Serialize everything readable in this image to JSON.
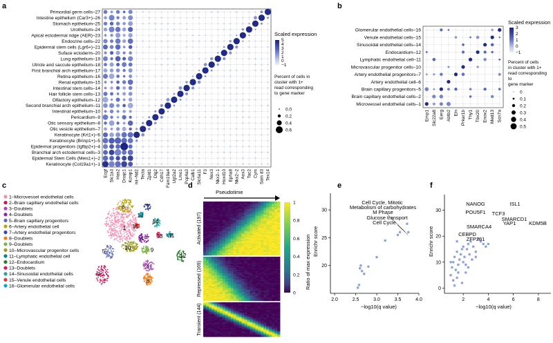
{
  "panels": {
    "a": {
      "label": "a",
      "rows": [
        "Primordial germ cells–27",
        "Intestine epithelium (Car3+)–26",
        "Stomach epithelium–25",
        "Urothelium–24",
        "Apical ectodermal ridge (AER)–23",
        "Endocrine cells–22",
        "Epidermal stem cells (Lgr6+)–21",
        "Suface ectoderm–20",
        "Lung epithelium–19",
        "Utricle and saccule epithelium–18",
        "First branchial arch epithelium–17",
        "Retina epithelium–16",
        "Renal epithelium–15",
        "Intestinal stem cells–14",
        "Hair follicle stem cells–13",
        "Olfactory epithelium–12",
        "Second branchial arch epithelium–11",
        "Intestinal epithelium–10",
        "Pericardium–9",
        "Otic sensory epithelium–8",
        "Otic vesicle epithelium–7",
        "Keratinocyte (Krt1+)–6",
        "Keratinocyte (Brinp1+)–5",
        "Epidermal progenitors (Igfbp2+)–4",
        "Branchial arch ectodermal cells–3",
        "Epidermal Stem Cells (Meis1+)–2",
        "Keratinocyte (Col19a1+)–1"
      ],
      "genes": [
        "Ecgf",
        "Slc1a3",
        "Has2",
        "Dnajc1",
        "Kcnip1",
        "mt–Nd2",
        "Tecta",
        "Zpld1",
        "Dlg2",
        "Cdh17",
        "Fam19a4",
        "Ugt2a2",
        "Lmo1",
        "Pcp4a3",
        "Calb1",
        "Slc6a11",
        "F3",
        "Nox3",
        "Nkx2–1",
        "Hoxd10",
        "Epha8",
        "Nkx2–2",
        "Aox3",
        "Tac2",
        "Cym",
        "Sam d3",
        "Tex14"
      ],
      "legend_title": "Scaled expression",
      "legend_ticks": [
        "5",
        "4",
        "3",
        "2",
        "1",
        "0",
        "−1"
      ],
      "size_title": "Percent of cells in cluster with 1+ read corresponding to gene marker",
      "size_labels": [
        "0.0",
        "0.2",
        "0.4",
        "0.6"
      ]
    },
    "b": {
      "label": "b",
      "rows": [
        "Glomerular endothelial cells–16",
        "Venule endothelial cells–15",
        "Sinusoidal endothelial cells–14",
        "Endocardium–12",
        "Lymphatic endothelial cell–11",
        "Microvascular progenitor cells–10",
        "Artery endothelial progenitors–7",
        "Artery endothelial cell–6",
        "Brain capillary progenitors–5",
        "Brain capillary endothelial cells–2",
        "Microvessel endothelial cells–1"
      ],
      "genes": [
        "Emp1",
        "Slc22a8",
        "Eerg",
        "Abtb2",
        "Eln",
        "Prkar1b",
        "Thy1",
        "Tbx20",
        "Enox2",
        "Med13",
        "Scn7a"
      ],
      "legend_title": "Scaled expression",
      "legend_ticks": [
        "3",
        "2",
        "1",
        "0",
        "−1"
      ],
      "size_title": "Percent of cells in cluster with 1+ read corresponding to gene marker",
      "size_labels": [
        "0",
        "0.1",
        "0.2",
        "0.3",
        "0.4",
        "0.5"
      ]
    },
    "c": {
      "label": "c",
      "legend": [
        {
          "n": "1",
          "text": "1–Microvessel endothelial cells",
          "color": "#f48fb1"
        },
        {
          "n": "2",
          "text": "2–Brain capillary endothelial cells",
          "color": "#c2185b"
        },
        {
          "n": "3",
          "text": "3–Doublets",
          "color": "#ab47bc"
        },
        {
          "n": "4",
          "text": "4–Doublets",
          "color": "#8e24aa"
        },
        {
          "n": "5",
          "text": "5–Brain capillary progenitors",
          "color": "#5c6bc0"
        },
        {
          "n": "6",
          "text": "6–Artery endothelial cell",
          "color": "#b8a60a"
        },
        {
          "n": "7",
          "text": "7–Artery endothelial progenitors",
          "color": "#3949ab"
        },
        {
          "n": "8",
          "text": "8–Doublets",
          "color": "#f57f17"
        },
        {
          "n": "9",
          "text": "9–Doublets",
          "color": "#7cb342"
        },
        {
          "n": "10",
          "text": "10–Microvascular progenitor cells",
          "color": "#9e9d24"
        },
        {
          "n": "11",
          "text": "11–Lymphatic endothelial cell",
          "color": "#00838f"
        },
        {
          "n": "12",
          "text": "12–Endocardium",
          "color": "#2e7d32"
        },
        {
          "n": "13",
          "text": "13–Doublets",
          "color": "#d81b60"
        },
        {
          "n": "14",
          "text": "14–Sinusoidal endothelial cells",
          "color": "#26a69a"
        },
        {
          "n": "15",
          "text": "15–Venule endothelial cells",
          "color": "#e53935"
        },
        {
          "n": "16",
          "text": "16–Glomerular endothelial cells",
          "color": "#00acc1"
        }
      ]
    },
    "d": {
      "label": "d",
      "arrow_label": "Pseudotime",
      "groups": [
        "Activated (197)",
        "Repressed (169)",
        "Transient (144)"
      ],
      "colorbar_ticks": [
        "1",
        "0.8",
        "0.6",
        "0.4",
        "0.2",
        "0"
      ],
      "colorbar_title": "Ratio of max expression"
    },
    "e": {
      "label": "e",
      "ylabel": "Enrichr score",
      "xlabel": "−log10(q value)",
      "xticks": [
        "2.0",
        "2.5",
        "3.0",
        "3.5",
        "4.0"
      ],
      "yticks": [
        "20",
        "25",
        "30"
      ],
      "annotations": [
        "Cell Cycle, Mitotic",
        "Metabolism of carbohydrates",
        "M Phase",
        "Glucose transport",
        "Cell Cycle"
      ]
    },
    "f": {
      "label": "f",
      "ylabel": "Enrichr score",
      "xlabel": "−log10(q value)",
      "xticks": [
        "2",
        "4",
        "6",
        "8"
      ],
      "yticks": [
        "0",
        "10",
        "20",
        "30"
      ],
      "annotations": [
        "NANOG",
        "ISL1",
        "POU5F1",
        "TCF3",
        "SMARCD1",
        "SMARCA4",
        "YAP1",
        "KDM5B",
        "CEBPD",
        "ZFP281"
      ]
    }
  },
  "chart_data": [
    {
      "type": "scatter",
      "panel": "e",
      "title": "",
      "xlabel": "−log10(q value)",
      "ylabel": "Enrichr score",
      "xlim": [
        1.9,
        4.0
      ],
      "ylim": [
        15,
        33
      ],
      "x": [
        2.55,
        2.58,
        2.6,
        2.62,
        2.65,
        2.7,
        2.8,
        3.0,
        3.2,
        3.5,
        3.55,
        3.72,
        3.75
      ],
      "y": [
        16.0,
        16.5,
        19.5,
        20.0,
        19.0,
        18.5,
        19.8,
        21.5,
        24.5,
        25.5,
        26.0,
        27.5,
        26.0
      ]
    },
    {
      "type": "scatter",
      "panel": "f",
      "title": "",
      "xlabel": "−log10(q value)",
      "ylabel": "Enrichr score",
      "xlim": [
        0.5,
        9.0
      ],
      "ylim": [
        -2,
        36
      ],
      "x": [
        1.0,
        1.1,
        1.2,
        1.3,
        1.4,
        1.5,
        1.5,
        1.6,
        1.7,
        1.8,
        1.9,
        2.0,
        2.0,
        2.1,
        2.2,
        2.3,
        2.4,
        2.5,
        2.6,
        2.8,
        3.0,
        3.2,
        3.4,
        3.6,
        3.8,
        4.0,
        1.2,
        1.6,
        2.2,
        2.7,
        1.3,
        1.9,
        2.4,
        3.0,
        1.0,
        1.5
      ],
      "y": [
        5,
        8,
        10,
        12,
        7,
        4,
        14,
        9,
        11,
        13,
        15,
        10,
        16,
        12,
        6,
        15,
        17,
        13,
        18,
        16,
        14,
        19,
        18,
        17,
        16,
        17,
        3,
        6,
        9,
        11,
        1,
        2,
        8,
        12,
        10,
        18
      ]
    }
  ]
}
